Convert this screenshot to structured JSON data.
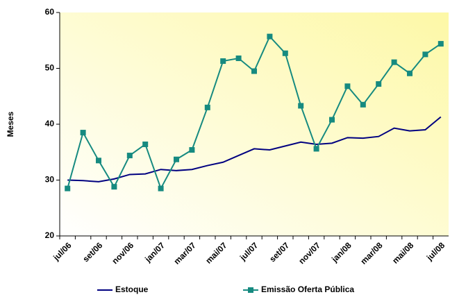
{
  "chart_data": {
    "type": "line",
    "y_label": "Meses",
    "categories": [
      "jul/06",
      null,
      "set/06",
      null,
      "nov/06",
      null,
      "jan/07",
      null,
      "mar/07",
      null,
      "mai/07",
      null,
      "jul/07",
      null,
      "set/07",
      null,
      "nov/07",
      null,
      "jan/08",
      null,
      "mar/08",
      null,
      "mai/08",
      null,
      "jul/08"
    ],
    "series": [
      {
        "name": "Estoque",
        "color": "#000080",
        "marker": "none",
        "values": [
          30.0,
          29.9,
          29.7,
          30.2,
          31.0,
          31.1,
          31.9,
          31.7,
          31.9,
          32.6,
          33.2,
          34.4,
          35.6,
          35.4,
          36.1,
          36.8,
          36.4,
          36.6,
          37.6,
          37.5,
          37.8,
          39.3,
          38.8,
          39.0,
          41.3
        ]
      },
      {
        "name": "Emissão Oferta Pública",
        "color": "#168a80",
        "marker": "square",
        "values": [
          28.5,
          38.5,
          33.5,
          28.8,
          34.4,
          36.4,
          28.5,
          33.7,
          35.4,
          43.0,
          51.3,
          51.8,
          49.5,
          55.7,
          52.7,
          43.3,
          35.6,
          40.8,
          46.8,
          43.5,
          47.2,
          51.1,
          49.1,
          52.5,
          54.4
        ]
      }
    ],
    "ylim": [
      20,
      60
    ],
    "yticks": [
      20,
      30,
      40,
      50,
      60
    ],
    "legend": "bottom"
  }
}
